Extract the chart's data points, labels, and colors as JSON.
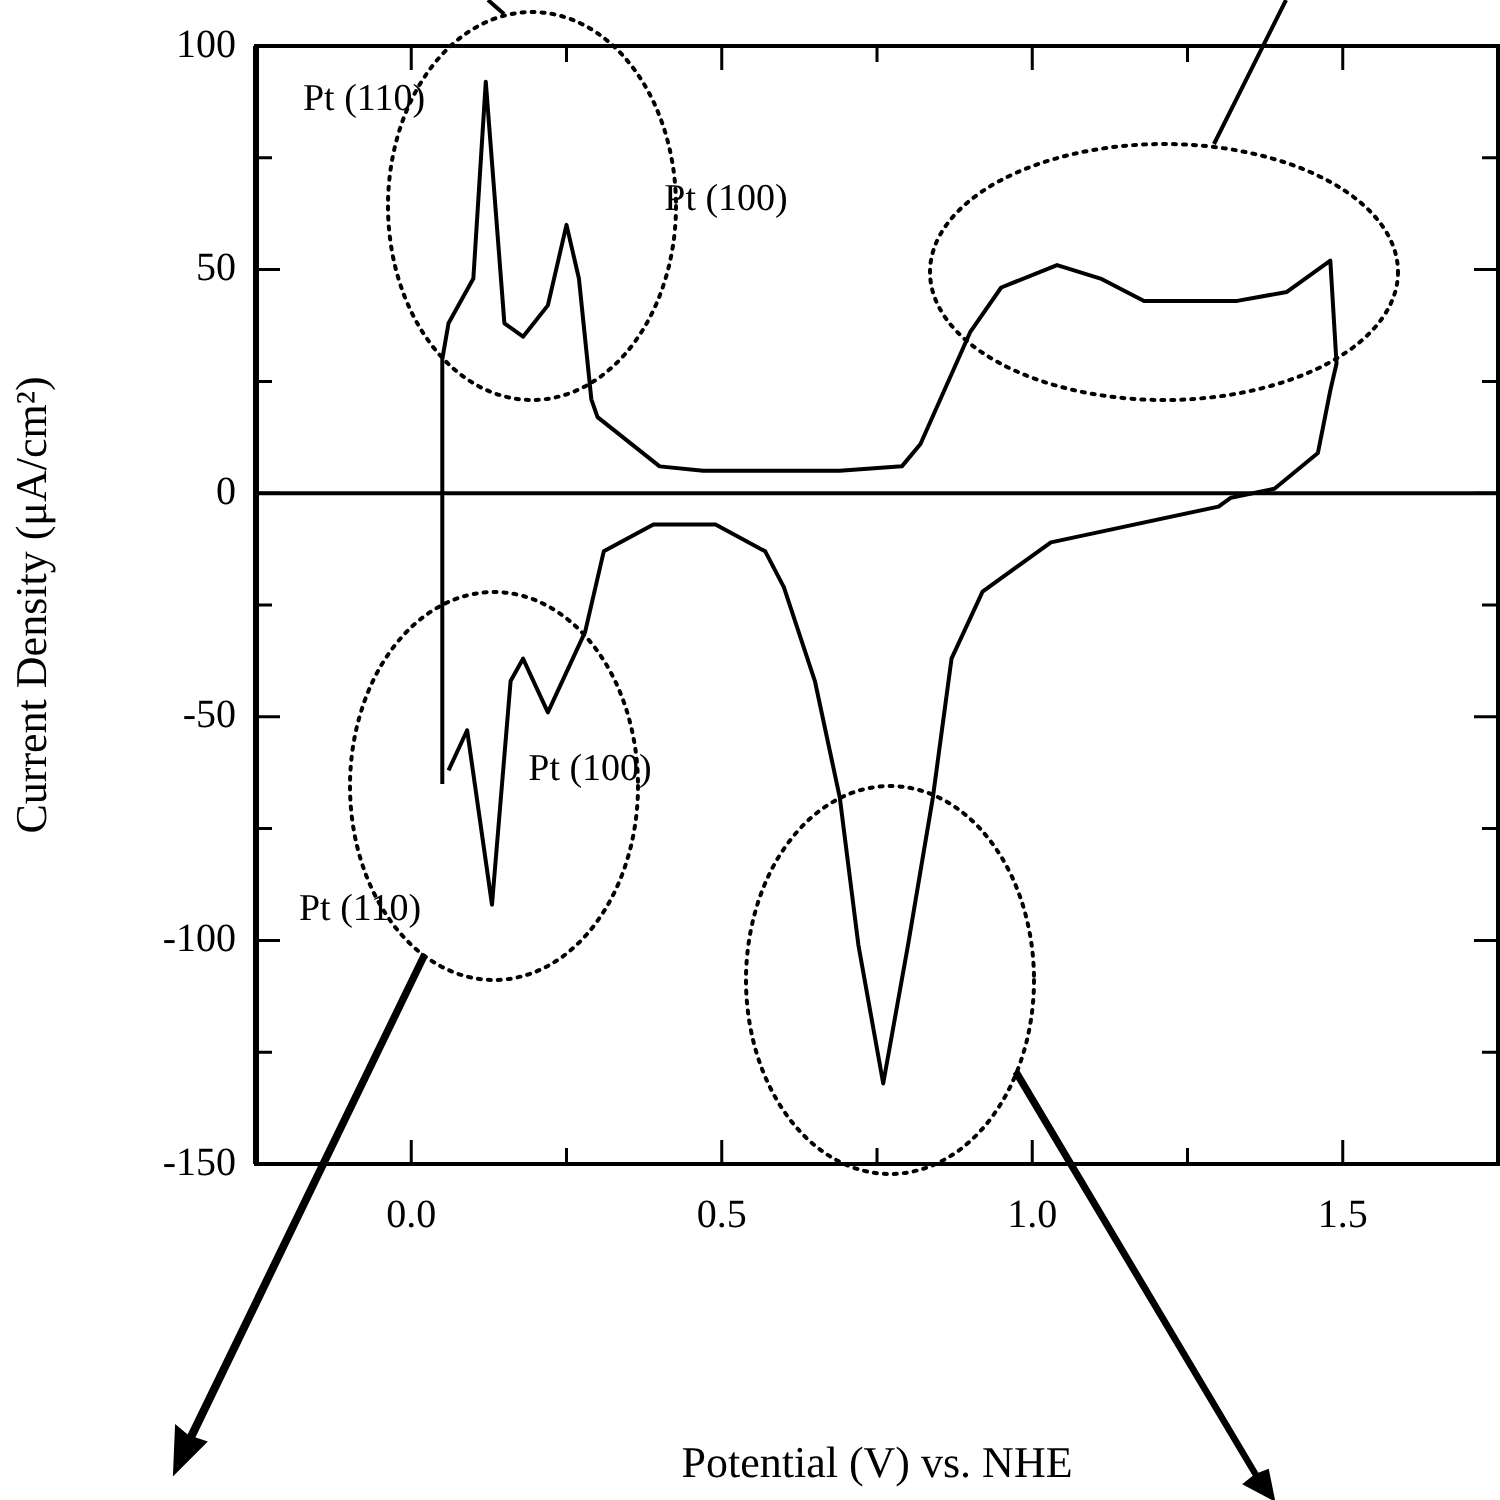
{
  "chart_data": {
    "type": "line",
    "xlabel": "Potential (V) vs. NHE",
    "ylabel": "Current Density (μA/cm²)",
    "xlim": [
      -0.25,
      1.75
    ],
    "ylim": [
      -150,
      100
    ],
    "xticks": [
      {
        "value": 0,
        "label": "0.0"
      },
      {
        "value": 0.25,
        "label": null
      },
      {
        "value": 0.5,
        "label": "0.5"
      },
      {
        "value": 0.75,
        "label": null
      },
      {
        "value": 1,
        "label": "1.0"
      },
      {
        "value": 1.25,
        "label": null
      },
      {
        "value": 1.5,
        "label": "1.5"
      }
    ],
    "yticks": [
      -150,
      {
        "value": -125,
        "label": null
      },
      -100,
      {
        "value": -75,
        "label": null
      },
      -50,
      {
        "value": -25,
        "label": null
      },
      0,
      {
        "value": 25,
        "label": null
      },
      50,
      {
        "value": 75,
        "label": null
      },
      100
    ],
    "grid": false,
    "legend": false,
    "marker": "none",
    "line_style": "solid",
    "ref_lines": [
      {
        "axis": "y",
        "value": 0,
        "color": "#000000"
      }
    ],
    "series": [
      {
        "color": "#000000",
        "x": [
          0.05,
          0.05,
          0.06,
          0.1,
          0.12,
          0.15,
          0.18,
          0.22,
          0.25,
          0.27,
          0.29,
          0.3,
          0.4,
          0.47,
          0.69,
          0.79,
          0.82,
          0.9,
          0.95,
          1.04,
          1.11,
          1.18,
          1.33,
          1.41,
          1.48,
          1.49,
          1.48,
          1.46,
          1.39,
          1.32,
          1.3,
          1.03,
          0.92,
          0.87,
          0.84,
          0.8,
          0.76,
          0.72,
          0.69,
          0.65,
          0.6,
          0.57,
          0.49,
          0.47,
          0.39,
          0.31,
          0.28,
          0.22,
          0.18,
          0.16,
          0.13,
          0.09,
          0.06
        ],
        "values": [
          -65,
          30,
          38,
          48,
          92,
          38,
          35,
          42,
          60,
          48,
          21,
          17,
          6,
          5,
          5,
          6,
          11,
          36,
          46,
          51,
          48,
          43,
          43,
          45,
          52,
          29,
          23,
          9,
          1,
          -1,
          -3,
          -11,
          -22,
          -37,
          -68,
          -101,
          -132,
          -101,
          -68,
          -42,
          -21,
          -13,
          -7,
          -7,
          -7,
          -13,
          -31,
          -49,
          -37,
          -42,
          -92,
          -53,
          -62
        ]
      }
    ],
    "annotations": [
      "Pt (110)",
      "Pt (100)",
      "Pt (100)",
      "Pt (110)"
    ]
  }
}
